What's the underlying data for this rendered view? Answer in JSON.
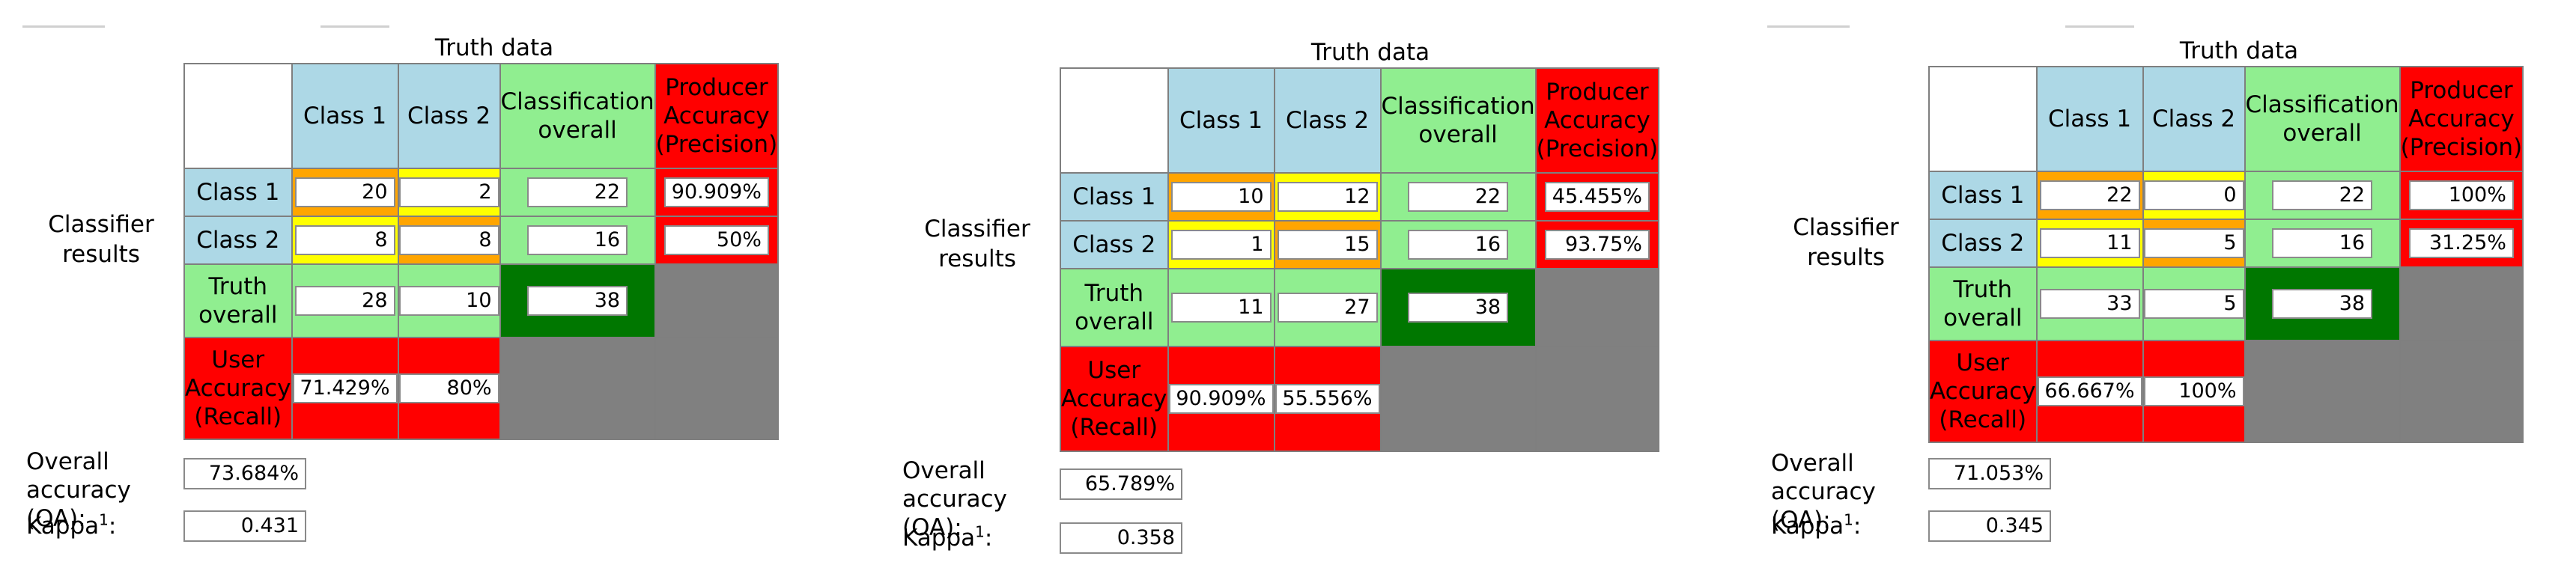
{
  "labels": {
    "truth_title": "Truth data",
    "classifier_results": "Classifier results",
    "class_1": "Class 1",
    "class_2": "Class 2",
    "classification_overall": "Classification overall",
    "producer_accuracy": "Producer Accuracy (Precision)",
    "truth_overall": "Truth overall",
    "user_accuracy": "User Accuracy (Recall)",
    "overall_accuracy": "Overall accuracy (OA):",
    "kappa": "Kappa",
    "kappa_sup": "1",
    "kappa_colon": ":"
  },
  "colors": {
    "class_header": "#add8e6",
    "overall": "#90ee90",
    "accuracy": "#ff0000",
    "correct": "#ffa500",
    "incorrect": "#ffff00",
    "total": "#007700",
    "empty": "#808080"
  },
  "panels": [
    {
      "r1": {
        "c1": "20",
        "c2": "2",
        "overall": "22",
        "producer": "90.909%"
      },
      "r2": {
        "c1": "8",
        "c2": "8",
        "overall": "16",
        "producer": "50%"
      },
      "truth_overall": {
        "c1": "28",
        "c2": "10",
        "total": "38"
      },
      "user_accuracy": {
        "c1": "71.429%",
        "c2": "80%"
      },
      "oa": "73.684%",
      "kappa": "0.431"
    },
    {
      "r1": {
        "c1": "10",
        "c2": "12",
        "overall": "22",
        "producer": "45.455%"
      },
      "r2": {
        "c1": "1",
        "c2": "15",
        "overall": "16",
        "producer": "93.75%"
      },
      "truth_overall": {
        "c1": "11",
        "c2": "27",
        "total": "38"
      },
      "user_accuracy": {
        "c1": "90.909%",
        "c2": "55.556%"
      },
      "oa": "65.789%",
      "kappa": "0.358"
    },
    {
      "r1": {
        "c1": "22",
        "c2": "0",
        "overall": "22",
        "producer": "100%"
      },
      "r2": {
        "c1": "11",
        "c2": "5",
        "overall": "16",
        "producer": "31.25%"
      },
      "truth_overall": {
        "c1": "33",
        "c2": "5",
        "total": "38"
      },
      "user_accuracy": {
        "c1": "66.667%",
        "c2": "100%"
      },
      "oa": "71.053%",
      "kappa": "0.345"
    }
  ]
}
